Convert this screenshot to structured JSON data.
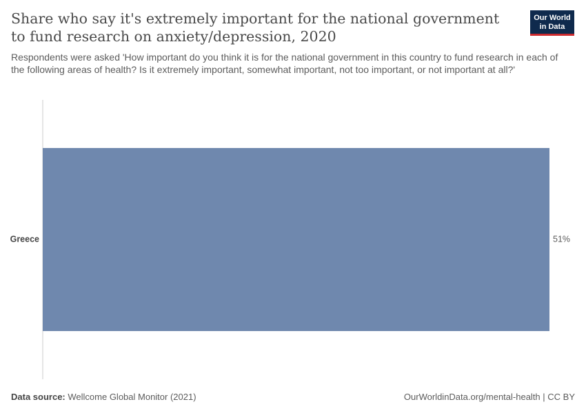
{
  "header": {
    "title": "Share who say it's extremely important for the national government to fund research on anxiety/depression, 2020",
    "subtitle": "Respondents were asked 'How important do you think it is for the national government in this country to fund research in each of the following areas of health? Is it extremely important, somewhat important, not too important, or not important at all?'"
  },
  "logo": {
    "line1": "Our World",
    "line2": "in Data"
  },
  "footer": {
    "source_label": "Data source:",
    "source_text": "Wellcome Global Monitor (2021)",
    "link_text": "OurWorldinData.org/mental-health | CC BY"
  },
  "colors": {
    "bar": "#6f88ae",
    "axis": "#cccccc",
    "logo_bg": "#0f2a4d",
    "logo_accent": "#cc2a2e"
  },
  "chart_data": {
    "type": "bar",
    "orientation": "horizontal",
    "categories": [
      "Greece"
    ],
    "values": [
      51
    ],
    "value_labels": [
      "51%"
    ],
    "unit": "%",
    "xlim": [
      0,
      51
    ],
    "grid": false
  }
}
